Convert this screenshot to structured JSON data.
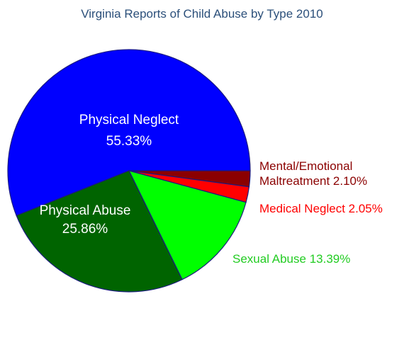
{
  "chart_data": {
    "type": "pie",
    "title": "Virginia Reports of Child Abuse by Type 2010",
    "slices": [
      {
        "name": "Physical Neglect",
        "value": 55.33,
        "label": "55.33%",
        "color": "#0000ff"
      },
      {
        "name": "Mental/Emotional Maltreatment",
        "value": 2.1,
        "label": "2.10%",
        "color": "#8b0000"
      },
      {
        "name": "Medical Neglect",
        "value": 2.05,
        "label": "2.05%",
        "color": "#ff0000"
      },
      {
        "name": "Sexual Abuse",
        "value": 13.39,
        "label": "13.39%",
        "color": "#00ff00"
      },
      {
        "name": "Physical Abuse",
        "value": 25.86,
        "label": "25.86%",
        "color": "#006400"
      }
    ],
    "text_labels": {
      "physical_neglect_name": "Physical Neglect",
      "physical_neglect_pct": "55.33%",
      "physical_abuse_name": "Physical Abuse",
      "physical_abuse_pct": "25.86%",
      "mental_line1": "Mental/Emotional",
      "mental_line2": "Maltreatment 2.10%",
      "medical": "Medical Neglect 2.05%",
      "sexual": "Sexual Abuse 13.39%"
    },
    "label_colors": {
      "inside": "#ffffff",
      "mental": "#8b0000",
      "medical": "#ff0000",
      "sexual": "#22cc22"
    }
  }
}
